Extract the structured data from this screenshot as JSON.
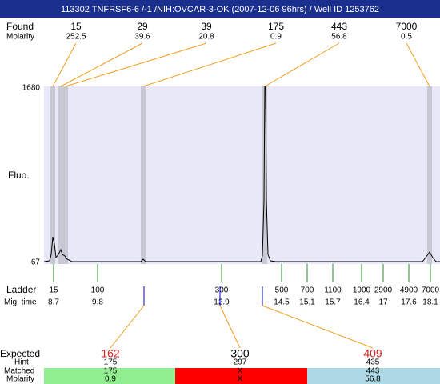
{
  "header": {
    "title": "113302 TNFRSF6-6 /-1 /NIH:OVCAR-3-OK (2007-12-06 96hrs) / Well ID 1253762"
  },
  "found": {
    "label": "Found",
    "molarity_label": "Molarity",
    "peaks": [
      {
        "size": 15,
        "molarity": 252.5
      },
      {
        "size": 29,
        "molarity": 39.6
      },
      {
        "size": 39,
        "molarity": 20.8
      },
      {
        "size": 175,
        "molarity": 0.9
      },
      {
        "size": 443,
        "molarity": 56.8
      },
      {
        "size": 7000,
        "molarity": 0.5
      }
    ]
  },
  "plot": {
    "y_label": "Fluo.",
    "yticks": [
      1680,
      67
    ]
  },
  "ladder": {
    "label": "Ladder",
    "time_label": "Mig. time",
    "sizes": [
      15,
      100,
      300,
      500,
      700,
      1100,
      1900,
      2900,
      4900,
      7000
    ],
    "times": [
      8.7,
      9.8,
      12.9,
      14.5,
      15.1,
      15.7,
      16.4,
      17,
      17.6,
      18.1
    ]
  },
  "expected": {
    "label": "Expected",
    "hint_label": "Hint",
    "matched_label": "Matched",
    "molarity_label": "Molarity",
    "items": [
      {
        "expected": 162,
        "hint": 175,
        "matched": 175,
        "molarity": 0.9,
        "color": "#e02020",
        "status_color": "#90ee90"
      },
      {
        "expected": 300,
        "hint": 297,
        "matched": "X",
        "molarity": "X",
        "color": "#000000",
        "status_color": "#ff0000"
      },
      {
        "expected": 409,
        "hint": 435,
        "matched": 443,
        "molarity": 56.8,
        "color": "#e02020",
        "status_color": "#add8e6"
      }
    ]
  }
}
